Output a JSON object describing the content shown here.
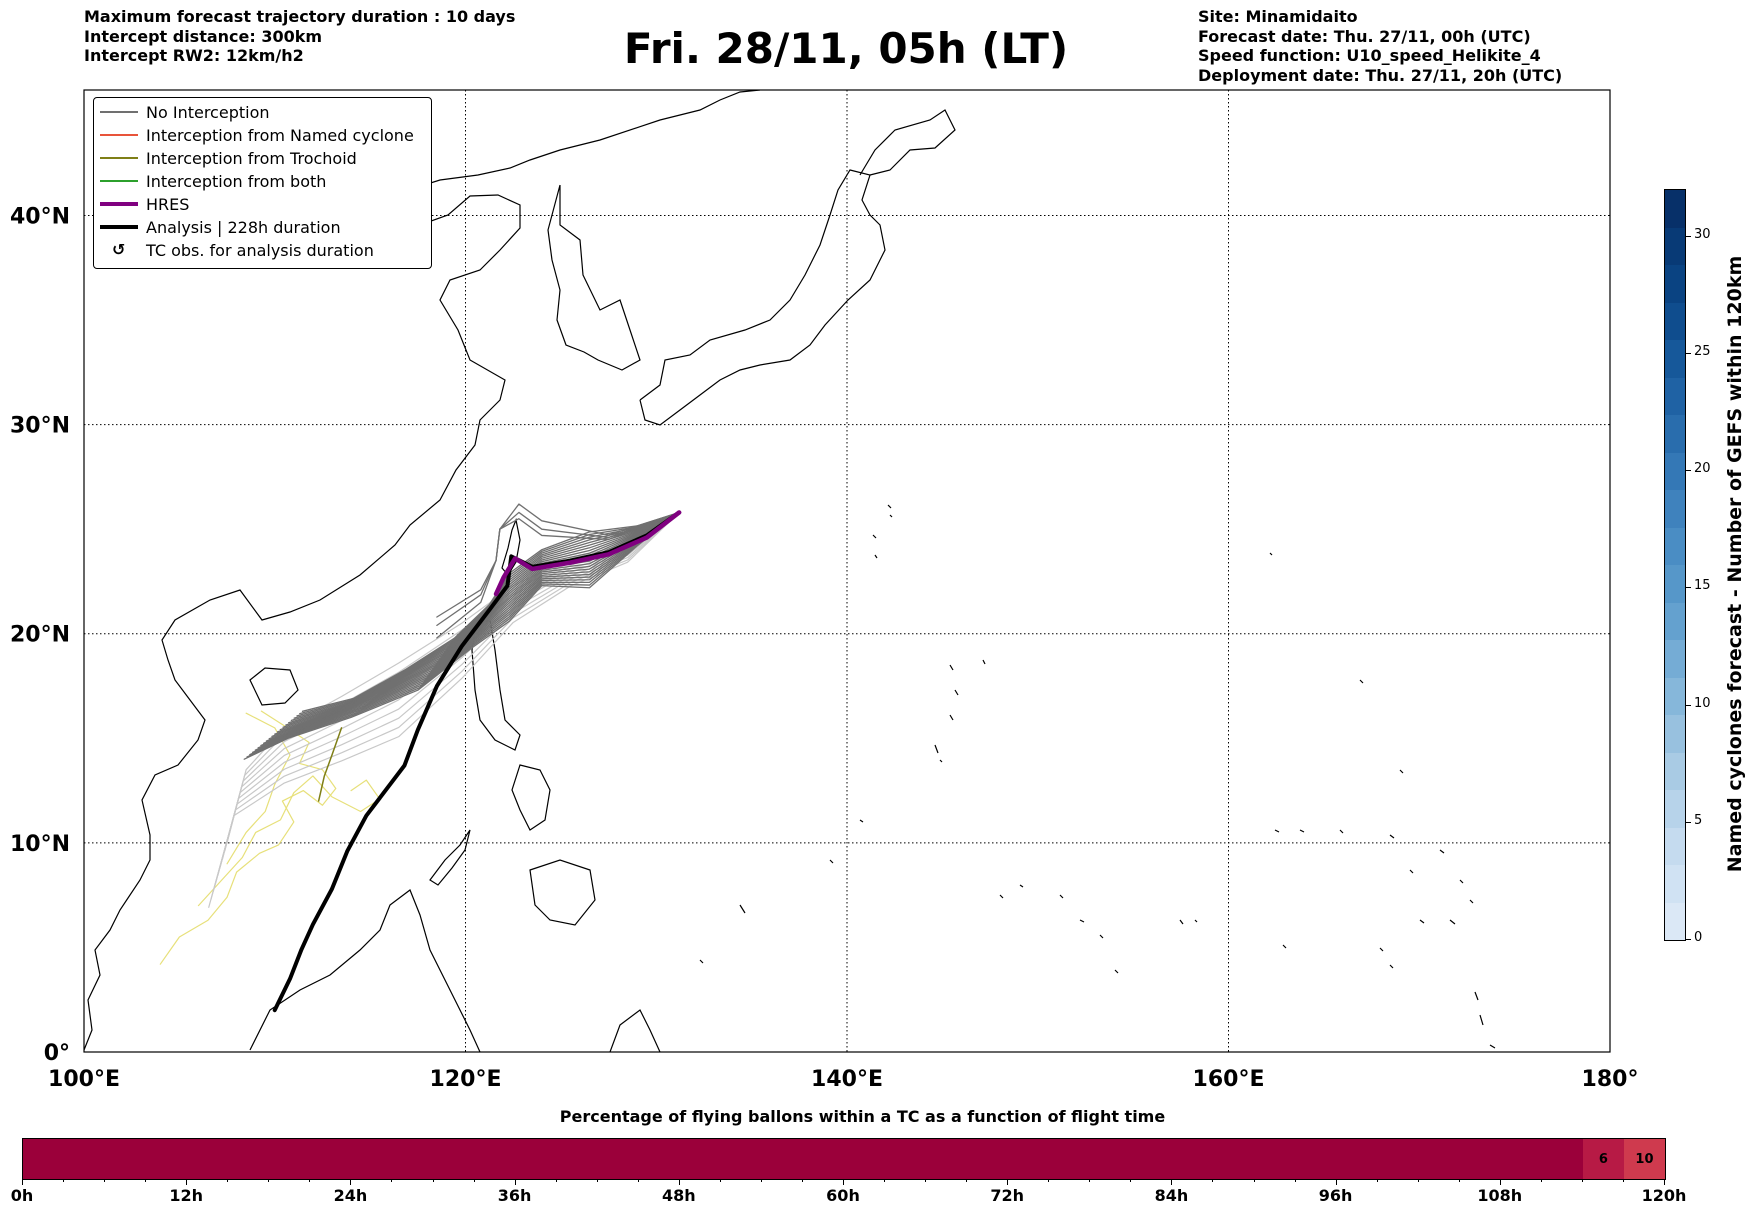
{
  "header": {
    "left_lines": [
      "Maximum forecast trajectory duration : 10 days",
      "Intercept distance: 300km",
      "Intercept RW2: 12km/h2"
    ],
    "title": "Fri. 28/11, 05h (LT)",
    "right_lines": [
      "Site: Minamidaito",
      "Forecast date: Thu. 27/11, 00h (UTC)",
      "Speed function: U10_speed_Helikite_4",
      "Deployment date: Thu. 27/11, 20h (UTC)"
    ]
  },
  "map": {
    "lon_range": [
      100,
      180
    ],
    "lat_range": [
      0,
      46
    ],
    "x_ticks": [
      {
        "value": 100,
        "label": "100°E"
      },
      {
        "value": 120,
        "label": "120°E"
      },
      {
        "value": 140,
        "label": "140°E"
      },
      {
        "value": 160,
        "label": "160°E"
      },
      {
        "value": 180,
        "label": "180°"
      }
    ],
    "y_ticks": [
      {
        "value": 0,
        "label": "0°"
      },
      {
        "value": 10,
        "label": "10°N"
      },
      {
        "value": 20,
        "label": "20°N"
      },
      {
        "value": 30,
        "label": "30°N"
      },
      {
        "value": 40,
        "label": "40°N"
      }
    ],
    "grid": "dotted",
    "launch_site": [
      131.2,
      25.8
    ],
    "analysis_track": [
      [
        131.2,
        25.8
      ],
      [
        129.5,
        24.7
      ],
      [
        127.5,
        23.9
      ],
      [
        125.5,
        23.5
      ],
      [
        123.5,
        23.2
      ],
      [
        122.4,
        23.7
      ],
      [
        122.2,
        22.3
      ],
      [
        121.3,
        21.2
      ],
      [
        119.8,
        19.4
      ],
      [
        118.5,
        17.5
      ],
      [
        117.5,
        15.4
      ],
      [
        116.8,
        13.7
      ],
      [
        115.8,
        12.5
      ],
      [
        114.8,
        11.3
      ],
      [
        113.8,
        9.6
      ],
      [
        113.0,
        7.8
      ],
      [
        112.0,
        6.1
      ],
      [
        111.4,
        4.9
      ],
      [
        110.8,
        3.5
      ],
      [
        110.0,
        2.0
      ]
    ],
    "hres_track": [
      [
        131.2,
        25.8
      ],
      [
        129.5,
        24.6
      ],
      [
        127.5,
        23.8
      ],
      [
        125.5,
        23.4
      ],
      [
        123.5,
        23.1
      ],
      [
        122.6,
        23.6
      ],
      [
        122.0,
        22.7
      ],
      [
        121.6,
        21.9
      ]
    ],
    "colors": {
      "no_interception": "#707070",
      "no_interception_late": "#c8c8c8",
      "named_cyclone": "#e8543a",
      "trochoid": "#7f7f17",
      "both": "#2ca02c",
      "hres": "#800080",
      "analysis": "#000000",
      "tc_obs": "#e7e07a"
    }
  },
  "legend": {
    "items": [
      {
        "label": "No Interception",
        "color": "#707070",
        "width": 1.2,
        "kind": "line"
      },
      {
        "label": "Interception from Named cyclone",
        "color": "#e8543a",
        "width": 1.2,
        "kind": "line"
      },
      {
        "label": "Interception from Trochoid",
        "color": "#7f7f17",
        "width": 1.2,
        "kind": "line"
      },
      {
        "label": "Interception from both",
        "color": "#2ca02c",
        "width": 1.2,
        "kind": "line"
      },
      {
        "label": "HRES",
        "color": "#800080",
        "width": 4,
        "kind": "line"
      },
      {
        "label": "Analysis | 228h duration",
        "color": "#000000",
        "width": 4,
        "kind": "line"
      },
      {
        "label": "TC obs. for analysis duration",
        "color": "#000000",
        "width": 0,
        "kind": "symbol",
        "symbol": "↺"
      }
    ]
  },
  "colorbar": {
    "label": "Named cyclones forecast - Number of GEFS within 120km",
    "min": 0,
    "max": 32,
    "ticks": [
      "0",
      "5",
      "10",
      "15",
      "20",
      "25",
      "30"
    ],
    "tick_values": [
      0,
      5,
      10,
      15,
      20,
      25,
      30
    ],
    "colors": [
      "#dbe8f6",
      "#d0e2f3",
      "#c5dbef",
      "#b7d3ea",
      "#a9cbe4",
      "#98c1df",
      "#86b7da",
      "#75acd5",
      "#64a1cf",
      "#5697c9",
      "#4a8dc4",
      "#3f82bd",
      "#3478b6",
      "#296dad",
      "#1f62a4",
      "#16589a",
      "#0f4d8e",
      "#0a4382",
      "#083a76",
      "#073069"
    ]
  },
  "percentage_bar": {
    "title": "Percentage of flying ballons within a TC as a function of flight time",
    "max_hours": 120,
    "tick_labels": [
      "0h",
      "12h",
      "24h",
      "36h",
      "48h",
      "60h",
      "72h",
      "84h",
      "96h",
      "108h",
      "120h"
    ],
    "tick_values": [
      0,
      12,
      24,
      36,
      48,
      60,
      72,
      84,
      96,
      108,
      120
    ],
    "segments": [
      {
        "from": 0,
        "to": 114,
        "label": "",
        "color": "#9b003a"
      },
      {
        "from": 114,
        "to": 117,
        "label": "6",
        "color": "#b71a45"
      },
      {
        "from": 117,
        "to": 120,
        "label": "10",
        "color": "#cf3a4e"
      }
    ]
  }
}
